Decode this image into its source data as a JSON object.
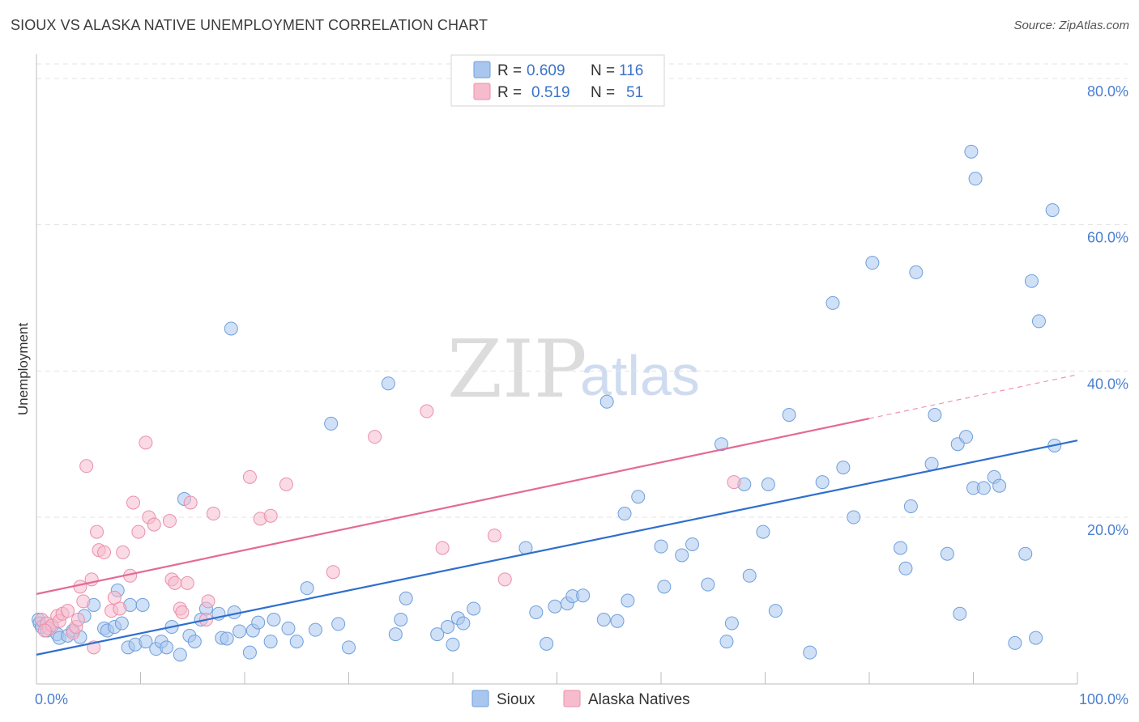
{
  "title": "SIOUX VS ALASKA NATIVE UNEMPLOYMENT CORRELATION CHART",
  "source": "Source: ZipAtlas.com",
  "watermark": {
    "zip": "ZIP",
    "atlas": "atlas"
  },
  "colors": {
    "sioux_fill": "#a9c7ee",
    "sioux_stroke": "#6e9fdb",
    "sioux_line": "#2f6fcd",
    "alaska_fill": "#f6bccd",
    "alaska_stroke": "#ea8fab",
    "alaska_line": "#e46a93",
    "grid": "#e3e3e3",
    "axis_tick_text": "#4a7fcf"
  },
  "legend": {
    "rows": [
      {
        "r_label": "R =",
        "r_value": "0.609",
        "n_label": "N =",
        "n_value": "116"
      },
      {
        "r_label": "R =",
        "r_value": "0.519",
        "n_label": "N =",
        "n_value": "51"
      }
    ]
  },
  "chart_data": {
    "type": "scatter",
    "title": "SIOUX VS ALASKA NATIVE UNEMPLOYMENT CORRELATION CHART",
    "xlabel": "",
    "ylabel": "Unemployment",
    "xlim": [
      0,
      100
    ],
    "ylim": [
      0,
      80
    ],
    "x_tick_labels": [
      "0.0%",
      "100.0%"
    ],
    "y_tick_values": [
      20,
      40,
      60,
      80
    ],
    "y_tick_labels": [
      "20.0%",
      "40.0%",
      "60.0%",
      "80.0%"
    ],
    "legend_position": "bottom",
    "series": [
      {
        "name": "Sioux",
        "color": "#a9c7ee",
        "points": [
          [
            0.2,
            6.0
          ],
          [
            0.3,
            5.5
          ],
          [
            0.5,
            5.0
          ],
          [
            1.0,
            4.5
          ],
          [
            1.5,
            5.2
          ],
          [
            2.0,
            4.0
          ],
          [
            2.2,
            3.5
          ],
          [
            3.0,
            3.8
          ],
          [
            3.5,
            4.5
          ],
          [
            4.2,
            3.6
          ],
          [
            4.6,
            6.5
          ],
          [
            5.5,
            8.0
          ],
          [
            6.5,
            4.8
          ],
          [
            6.8,
            4.5
          ],
          [
            7.5,
            5.0
          ],
          [
            7.8,
            10.0
          ],
          [
            8.2,
            5.5
          ],
          [
            8.8,
            2.2
          ],
          [
            9.0,
            8.0
          ],
          [
            9.5,
            2.6
          ],
          [
            10.2,
            8.0
          ],
          [
            10.5,
            3.0
          ],
          [
            11.5,
            2.0
          ],
          [
            12.0,
            3.0
          ],
          [
            12.5,
            2.2
          ],
          [
            13.0,
            5.0
          ],
          [
            13.8,
            1.2
          ],
          [
            14.2,
            22.5
          ],
          [
            14.7,
            3.8
          ],
          [
            15.2,
            3.0
          ],
          [
            15.8,
            6.0
          ],
          [
            16.3,
            7.5
          ],
          [
            17.5,
            6.8
          ],
          [
            17.8,
            3.5
          ],
          [
            18.3,
            3.4
          ],
          [
            18.7,
            45.8
          ],
          [
            19.0,
            7.0
          ],
          [
            19.5,
            4.4
          ],
          [
            20.5,
            1.5
          ],
          [
            20.8,
            4.5
          ],
          [
            21.3,
            5.6
          ],
          [
            22.5,
            3.0
          ],
          [
            22.8,
            6.0
          ],
          [
            24.2,
            4.8
          ],
          [
            25.0,
            3.0
          ],
          [
            26.0,
            10.3
          ],
          [
            26.8,
            4.6
          ],
          [
            28.3,
            32.8
          ],
          [
            29.0,
            5.4
          ],
          [
            30.0,
            2.2
          ],
          [
            33.8,
            38.3
          ],
          [
            34.5,
            4.0
          ],
          [
            35.0,
            6.0
          ],
          [
            35.5,
            8.9
          ],
          [
            38.5,
            4.0
          ],
          [
            39.5,
            5.0
          ],
          [
            40.0,
            2.6
          ],
          [
            40.5,
            6.2
          ],
          [
            41.0,
            5.5
          ],
          [
            42.0,
            7.5
          ],
          [
            47.0,
            15.8
          ],
          [
            48.0,
            7.0
          ],
          [
            49.0,
            2.7
          ],
          [
            49.8,
            7.8
          ],
          [
            51.0,
            8.2
          ],
          [
            51.5,
            9.2
          ],
          [
            52.5,
            9.3
          ],
          [
            54.5,
            6.0
          ],
          [
            54.8,
            35.8
          ],
          [
            55.8,
            5.8
          ],
          [
            56.5,
            20.5
          ],
          [
            56.8,
            8.6
          ],
          [
            57.8,
            22.8
          ],
          [
            60.0,
            16.0
          ],
          [
            60.3,
            10.5
          ],
          [
            62.0,
            14.8
          ],
          [
            63.0,
            16.3
          ],
          [
            64.5,
            10.8
          ],
          [
            65.8,
            30.0
          ],
          [
            66.3,
            3.0
          ],
          [
            66.8,
            5.5
          ],
          [
            68.0,
            24.5
          ],
          [
            68.5,
            12.0
          ],
          [
            69.8,
            18.0
          ],
          [
            70.3,
            24.5
          ],
          [
            71.0,
            7.2
          ],
          [
            72.3,
            34.0
          ],
          [
            74.3,
            1.5
          ],
          [
            75.5,
            24.8
          ],
          [
            76.5,
            49.3
          ],
          [
            77.5,
            26.8
          ],
          [
            78.5,
            20.0
          ],
          [
            80.3,
            54.8
          ],
          [
            83.0,
            15.8
          ],
          [
            83.5,
            13.0
          ],
          [
            84.0,
            21.5
          ],
          [
            84.5,
            53.5
          ],
          [
            86.0,
            27.3
          ],
          [
            86.3,
            34.0
          ],
          [
            87.5,
            15.0
          ],
          [
            88.5,
            30.0
          ],
          [
            88.7,
            6.8
          ],
          [
            89.3,
            31.0
          ],
          [
            89.8,
            70.0
          ],
          [
            90.0,
            24.0
          ],
          [
            90.2,
            66.3
          ],
          [
            91.0,
            24.0
          ],
          [
            92.0,
            25.5
          ],
          [
            92.5,
            24.3
          ],
          [
            94.0,
            2.8
          ],
          [
            95.0,
            15.0
          ],
          [
            95.6,
            52.3
          ],
          [
            96.0,
            3.5
          ],
          [
            96.3,
            46.8
          ],
          [
            97.6,
            62.0
          ],
          [
            97.8,
            29.8
          ]
        ],
        "trendline": {
          "x": [
            0,
            100
          ],
          "y": [
            1.2,
            30.5
          ]
        }
      },
      {
        "name": "Alaska Natives",
        "color": "#f6bccd",
        "points": [
          [
            0.5,
            6.0
          ],
          [
            1.0,
            5.5
          ],
          [
            1.2,
            4.8
          ],
          [
            1.5,
            5.2
          ],
          [
            2.0,
            6.5
          ],
          [
            2.2,
            5.8
          ],
          [
            2.5,
            6.8
          ],
          [
            3.0,
            7.2
          ],
          [
            3.5,
            4.2
          ],
          [
            3.8,
            5.0
          ],
          [
            4.0,
            6.0
          ],
          [
            4.2,
            10.5
          ],
          [
            4.5,
            8.5
          ],
          [
            4.8,
            27.0
          ],
          [
            5.3,
            11.5
          ],
          [
            5.5,
            2.2
          ],
          [
            5.8,
            18.0
          ],
          [
            6.0,
            15.5
          ],
          [
            6.5,
            15.2
          ],
          [
            7.2,
            7.2
          ],
          [
            7.5,
            9.0
          ],
          [
            8.0,
            7.5
          ],
          [
            8.3,
            15.2
          ],
          [
            9.0,
            12.0
          ],
          [
            9.3,
            22.0
          ],
          [
            9.8,
            18.0
          ],
          [
            10.5,
            30.2
          ],
          [
            10.8,
            20.0
          ],
          [
            11.3,
            19.0
          ],
          [
            12.8,
            19.5
          ],
          [
            13.0,
            11.5
          ],
          [
            13.3,
            11.0
          ],
          [
            13.8,
            7.5
          ],
          [
            14.0,
            7.0
          ],
          [
            14.5,
            11.0
          ],
          [
            14.8,
            22.0
          ],
          [
            16.3,
            6.0
          ],
          [
            16.5,
            8.5
          ],
          [
            17.0,
            20.5
          ],
          [
            20.5,
            25.5
          ],
          [
            21.5,
            19.8
          ],
          [
            22.5,
            20.2
          ],
          [
            24.0,
            24.5
          ],
          [
            28.5,
            12.5
          ],
          [
            32.5,
            31.0
          ],
          [
            37.5,
            34.5
          ],
          [
            39.0,
            15.8
          ],
          [
            44.0,
            17.5
          ],
          [
            45.0,
            11.5
          ],
          [
            67.0,
            24.8
          ],
          [
            0.8,
            4.5
          ]
        ],
        "trendline": {
          "x": [
            0,
            80
          ],
          "y": [
            9.5,
            33.5
          ]
        },
        "trendline_dashed_extension": {
          "x": [
            80,
            100
          ],
          "y": [
            33.5,
            39.5
          ]
        }
      }
    ]
  }
}
